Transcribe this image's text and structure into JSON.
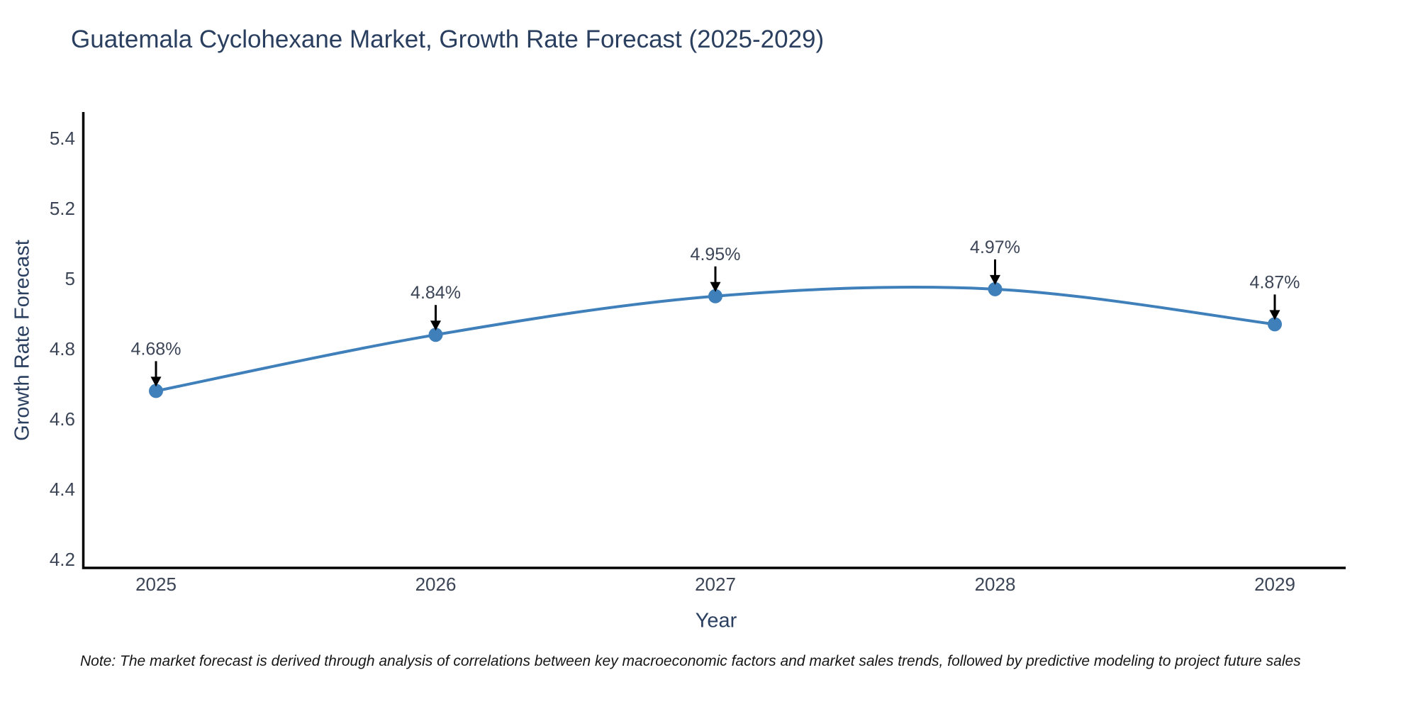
{
  "title": "Guatemala Cyclohexane Market, Growth Rate Forecast (2025-2029)",
  "note": "Note: The market forecast is derived through analysis of correlations between key macroeconomic factors and market sales trends, followed by predictive modeling to project future sales",
  "chart_data": {
    "type": "line",
    "title": "Guatemala Cyclohexane Market, Growth Rate Forecast (2025-2029)",
    "x": [
      "2025",
      "2026",
      "2027",
      "2028",
      "2029"
    ],
    "values": [
      4.68,
      4.84,
      4.95,
      4.97,
      4.87
    ],
    "point_labels": [
      "4.68%",
      "4.84%",
      "4.95%",
      "4.97%",
      "4.87%"
    ],
    "xlabel": "Year",
    "ylabel": "Growth Rate Forecast",
    "yticks": [
      4.2,
      4.4,
      4.6,
      4.8,
      5,
      5.2,
      5.4
    ],
    "ylim": [
      4.17,
      5.47
    ],
    "xticks": [
      "2025",
      "2026",
      "2027",
      "2028",
      "2029"
    ],
    "grid": false,
    "legend": "none",
    "line_shape": "spline",
    "annotations": "value label with down arrow above each point"
  },
  "colors": {
    "background": "#ffffff",
    "line": "#3f7fba",
    "marker": "#3f7fba",
    "axis": "#000000",
    "arrow": "#000000",
    "tick_text": "#3c4556",
    "annotation_text": "#3c4556",
    "title_text": "#2a3f5f",
    "note_text": "#161616"
  }
}
